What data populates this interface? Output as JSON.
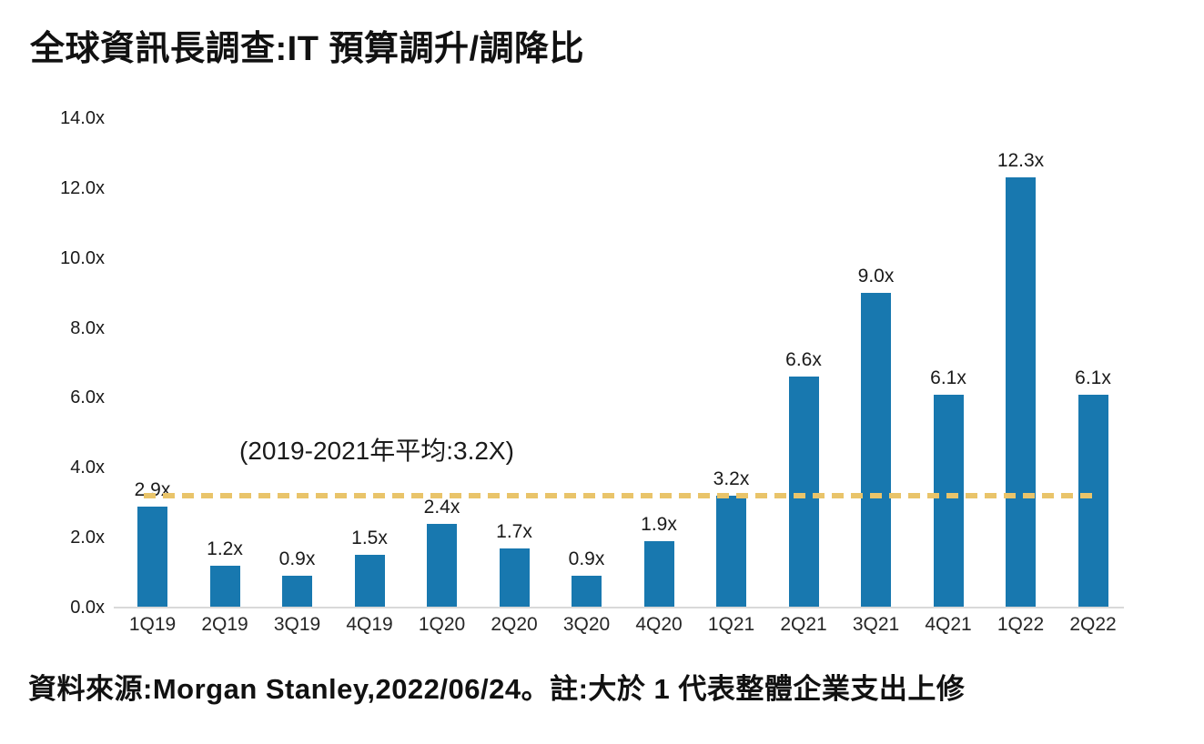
{
  "title": "全球資訊長調查:IT 預算調升/調降比",
  "footer": "資料來源:Morgan Stanley,2022/06/24。註:大於 1 代表整體企業支出上修",
  "chart_data": {
    "type": "bar",
    "title": "全球資訊長調查:IT 預算調升/調降比",
    "categories": [
      "1Q19",
      "2Q19",
      "3Q19",
      "4Q19",
      "1Q20",
      "2Q20",
      "3Q20",
      "4Q20",
      "1Q21",
      "2Q21",
      "3Q21",
      "4Q21",
      "1Q22",
      "2Q22"
    ],
    "values": [
      2.9,
      1.2,
      0.9,
      1.5,
      2.4,
      1.7,
      0.9,
      1.9,
      3.2,
      6.6,
      9.0,
      6.1,
      12.3,
      6.1
    ],
    "value_labels": [
      "2.9x",
      "1.2x",
      "0.9x",
      "1.5x",
      "2.4x",
      "1.7x",
      "0.9x",
      "1.9x",
      "3.2x",
      "6.6x",
      "9.0x",
      "6.1x",
      "12.3x",
      "6.1x"
    ],
    "xlabel": "",
    "ylabel": "",
    "ylim": [
      0,
      14
    ],
    "y_tick_step": 2,
    "y_tick_labels": [
      "0.0x",
      "2.0x",
      "4.0x",
      "6.0x",
      "8.0x",
      "10.0x",
      "12.0x",
      "14.0x"
    ],
    "grid": false,
    "legend": false,
    "average_line": {
      "value": 3.2,
      "label": "(2019-2021年平均:3.2X)",
      "style": "dashed"
    },
    "colors": {
      "bar": "#1878AF",
      "average_line": "#E9C46A",
      "axis_line": "#D9D9D9",
      "text": "#1a1a1a"
    }
  }
}
